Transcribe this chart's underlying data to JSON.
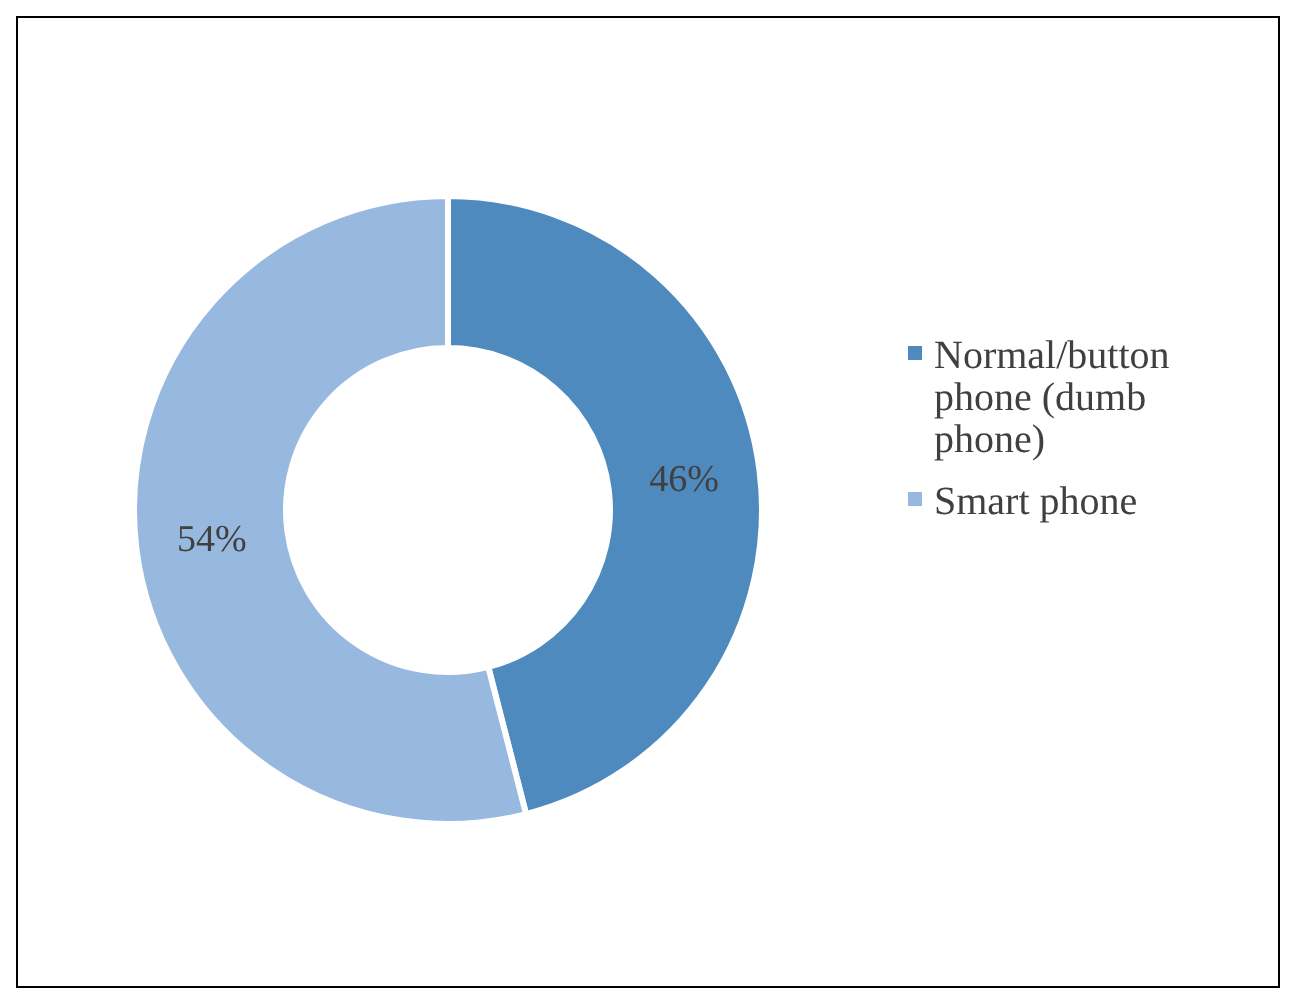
{
  "chart_data": {
    "type": "donut",
    "categories": [
      "Normal/button phone (dumb phone)",
      "Smart phone"
    ],
    "values": [
      46,
      54
    ],
    "colors": [
      "#4f8abe",
      "#98b9df"
    ],
    "value_labels": [
      "46%",
      "54%"
    ],
    "legend": "right"
  }
}
